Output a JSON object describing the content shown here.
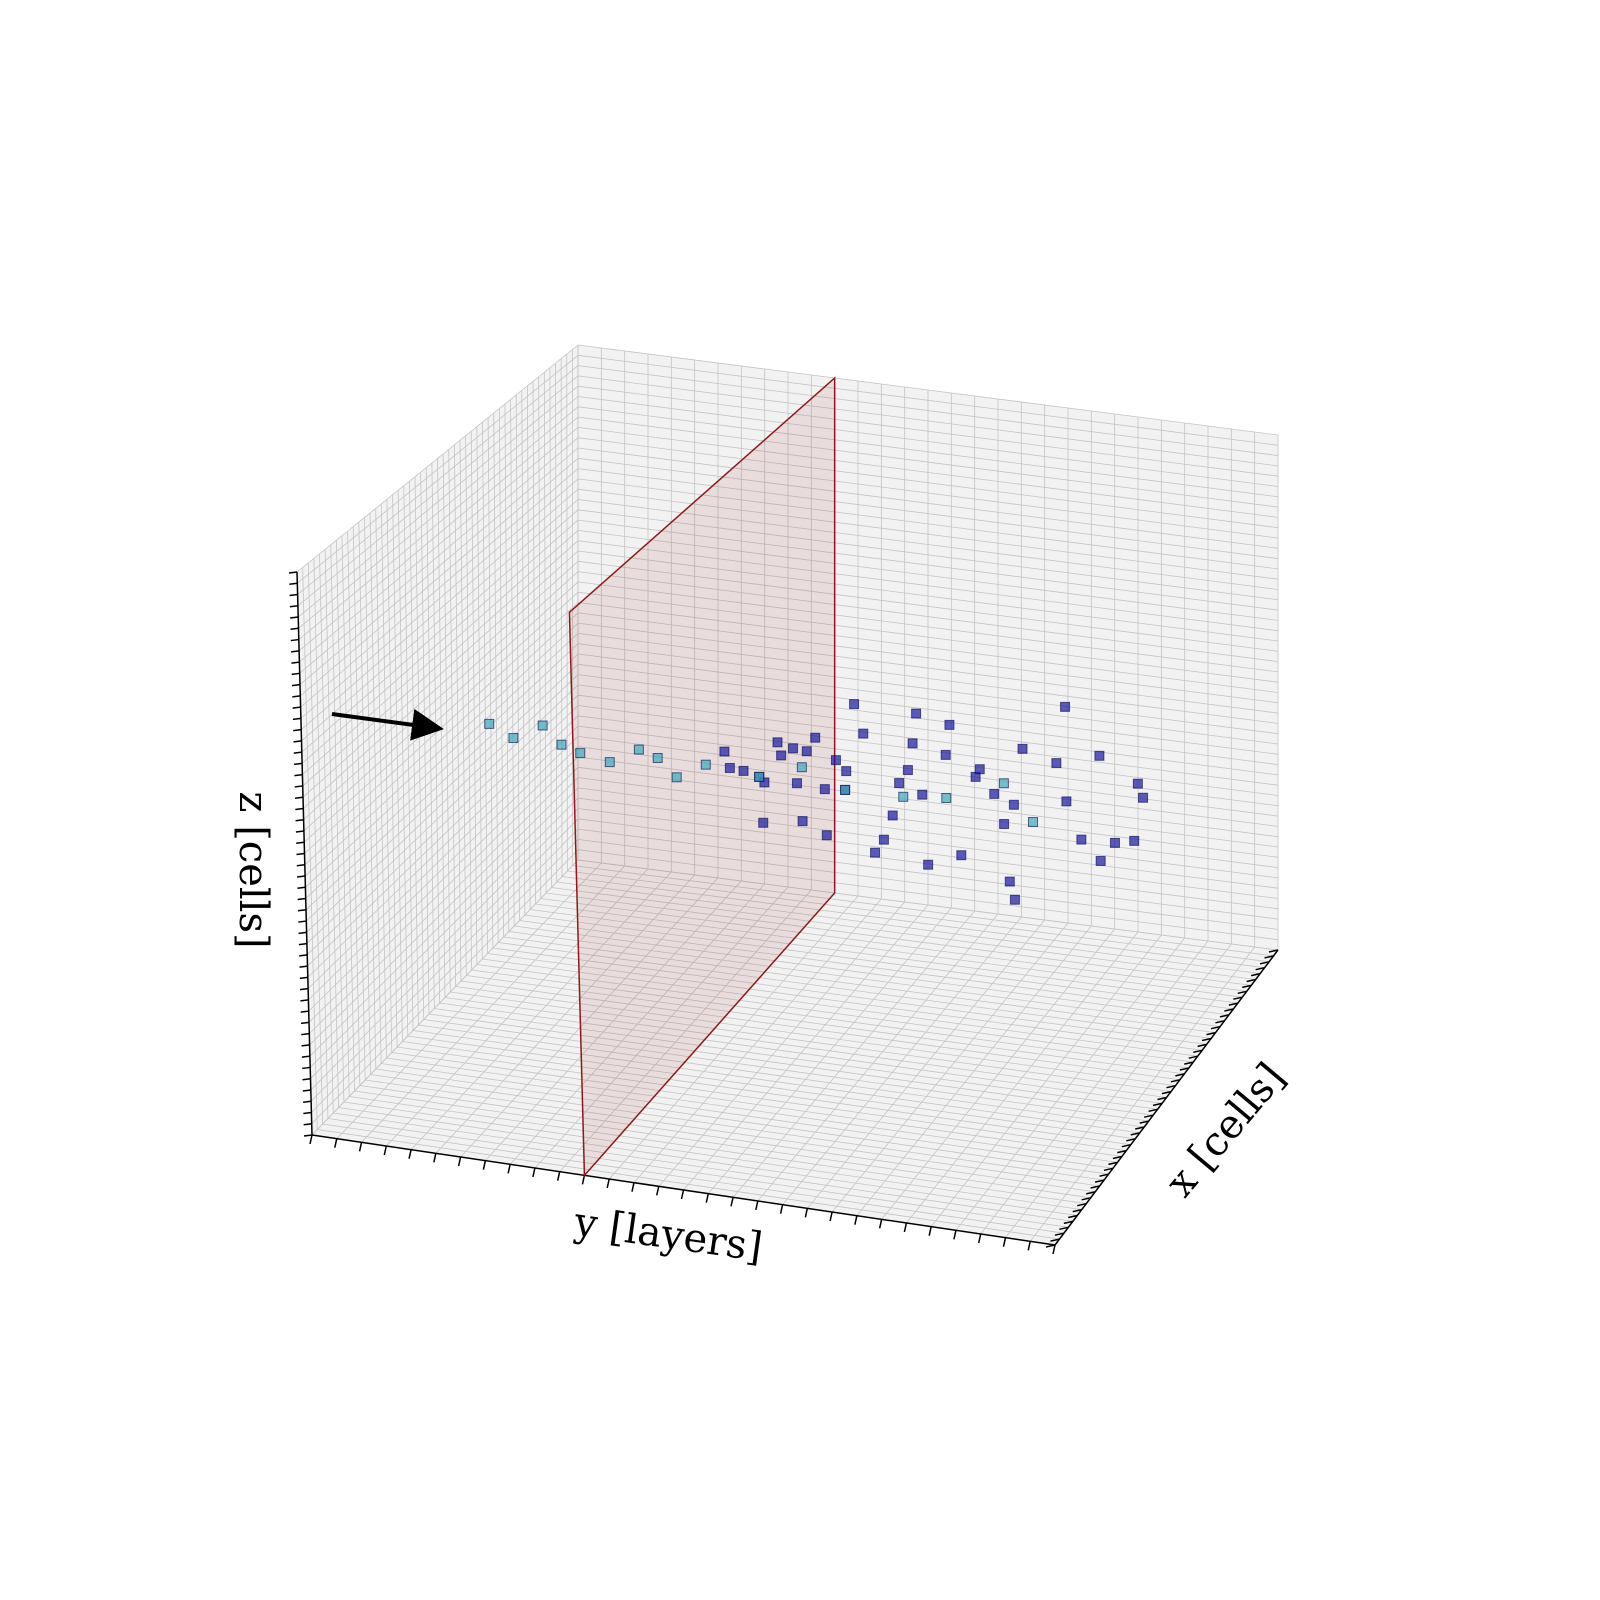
{
  "chart_data": {
    "type": "scatter3d",
    "xlabel": "x [cells]",
    "ylabel": "y [layers]",
    "zlabel": "z [cells]",
    "xlim": [
      0,
      50
    ],
    "ylim": [
      0,
      30
    ],
    "zlim": [
      0,
      50
    ],
    "grid": true,
    "highlight_layer": 11,
    "series": [
      {
        "color": "#1a1a9c",
        "x": [
          25,
          24,
          26,
          23,
          27,
          25,
          22,
          28,
          24,
          26,
          25,
          21,
          29,
          23,
          27,
          25,
          24,
          26,
          20,
          30,
          25,
          23,
          27,
          22,
          28,
          25,
          24,
          26,
          19,
          31,
          25,
          23,
          27,
          21,
          29,
          25,
          24,
          26,
          22,
          28,
          18,
          32,
          25,
          23,
          27,
          20,
          30,
          25,
          26,
          24
        ],
        "y": [
          12,
          12,
          13,
          13,
          13,
          14,
          14,
          14,
          15,
          15,
          15,
          15,
          16,
          16,
          16,
          16,
          17,
          17,
          17,
          18,
          18,
          18,
          19,
          19,
          19,
          20,
          20,
          20,
          20,
          21,
          21,
          22,
          22,
          22,
          23,
          23,
          24,
          24,
          24,
          25,
          25,
          26,
          26,
          27,
          27,
          27,
          28,
          28,
          29,
          29
        ],
        "z": [
          25,
          27,
          24,
          26,
          23,
          28,
          22,
          26,
          25,
          27,
          21,
          29,
          24,
          30,
          26,
          20,
          25,
          32,
          27,
          23,
          19,
          31,
          26,
          22,
          28,
          25,
          33,
          18,
          26,
          24,
          29,
          21,
          27,
          34,
          23,
          26,
          17,
          30,
          25,
          28,
          22,
          27,
          35,
          24,
          20,
          29,
          26,
          23,
          27,
          24
        ]
      },
      {
        "color": "#3fa8b8",
        "x": [
          25,
          25,
          26,
          25,
          24,
          25,
          26,
          25,
          24,
          25,
          26,
          25,
          24,
          26,
          25,
          27,
          23
        ],
        "y": [
          2,
          3,
          4,
          5,
          6,
          7,
          8,
          9,
          10,
          11,
          13,
          15,
          17,
          19,
          21,
          23,
          25
        ],
        "z": [
          26,
          25,
          26,
          25,
          25,
          24,
          25,
          25,
          24,
          25,
          24,
          26,
          25,
          24,
          25,
          26,
          25
        ]
      }
    ]
  }
}
